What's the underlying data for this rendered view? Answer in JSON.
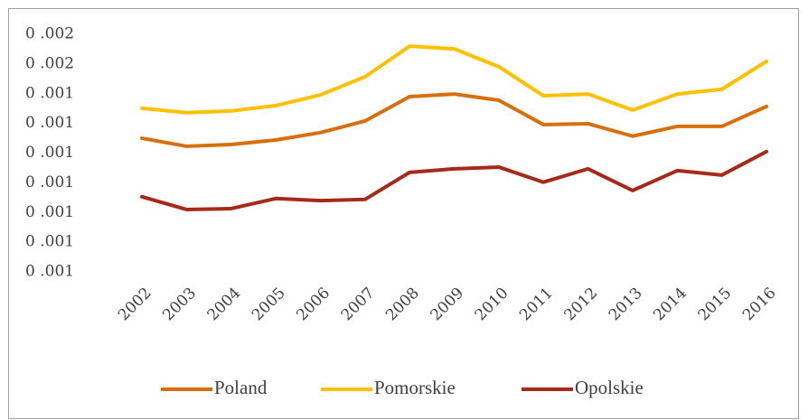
{
  "chart_data": {
    "type": "line",
    "categories": [
      "2002",
      "2003",
      "2004",
      "2005",
      "2006",
      "2007",
      "2008",
      "2009",
      "2010",
      "2011",
      "2012",
      "2013",
      "2014",
      "2015",
      "2016"
    ],
    "series": [
      {
        "name": "Poland",
        "color": "#d86f0e",
        "values": [
          0.00125,
          0.001223,
          0.001229,
          0.001244,
          0.001269,
          0.001308,
          0.00139,
          0.001399,
          0.001378,
          0.001296,
          0.001299,
          0.001257,
          0.00129,
          0.00129,
          0.001357
        ]
      },
      {
        "name": "Pomorskie",
        "color": "#ffc000",
        "values": [
          0.001351,
          0.001336,
          0.001342,
          0.00136,
          0.001396,
          0.001457,
          0.00156,
          0.001551,
          0.001491,
          0.001393,
          0.001399,
          0.001345,
          0.001399,
          0.001415,
          0.001509
        ]
      },
      {
        "name": "Opolskie",
        "color": "#a52a1a",
        "values": [
          0.001053,
          0.00101,
          0.001013,
          0.001047,
          0.00104,
          0.001044,
          0.001135,
          0.001147,
          0.001153,
          0.001102,
          0.001147,
          0.001074,
          0.001141,
          0.001126,
          0.001205
        ]
      }
    ],
    "ylim": [
      0.0008,
      0.0016
    ],
    "yticks": [
      {
        "value": 0.0016,
        "label": "0 .002"
      },
      {
        "value": 0.0015,
        "label": "0 .002"
      },
      {
        "value": 0.0014,
        "label": "0 .001"
      },
      {
        "value": 0.0013,
        "label": "0 .001"
      },
      {
        "value": 0.0012,
        "label": "0 .001"
      },
      {
        "value": 0.0011,
        "label": "0 .001"
      },
      {
        "value": 0.001,
        "label": "0 .001"
      },
      {
        "value": 0.0009,
        "label": "0 .001"
      },
      {
        "value": 0.0008,
        "label": "0 .001"
      }
    ],
    "grid": false,
    "legend": "bottom"
  }
}
